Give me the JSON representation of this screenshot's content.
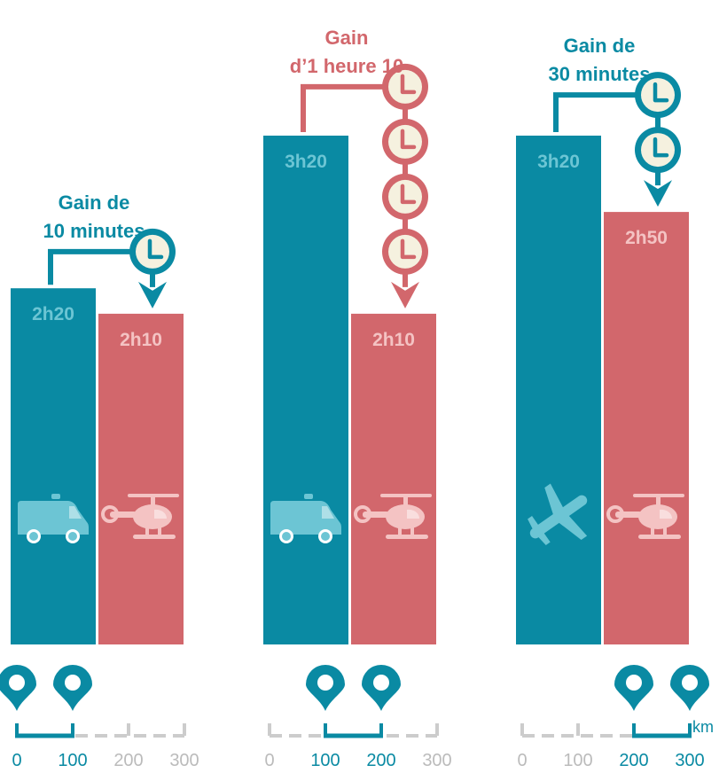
{
  "colors": {
    "blue": "#0a8aa3",
    "red": "#d2676c",
    "blue_label": "#6cc5d4",
    "red_label": "#f4c3c3",
    "clock_fill": "#f5f1df",
    "track_grey": "#cccccc",
    "tick_grey": "#bbbbbb"
  },
  "km_unit": "km",
  "chart_data": [
    {
      "type": "bar",
      "categories": [
        "ambulance",
        "helicopter"
      ],
      "values": [
        "2h20",
        "2h10"
      ],
      "values_minutes": [
        140,
        130
      ],
      "icons": [
        "ambulance-icon",
        "helicopter-icon"
      ],
      "gain_lines": [
        "Gain de",
        "10 minutes"
      ],
      "gain_color": "blue",
      "clock_count": 1,
      "km_ticks": [
        "0",
        "100",
        "200",
        "300"
      ],
      "route_km": [
        0,
        100
      ]
    },
    {
      "type": "bar",
      "categories": [
        "ambulance",
        "helicopter"
      ],
      "values": [
        "3h20",
        "2h10"
      ],
      "values_minutes": [
        200,
        130
      ],
      "icons": [
        "ambulance-icon",
        "helicopter-icon"
      ],
      "gain_lines": [
        "Gain",
        "d’1 heure 10"
      ],
      "gain_color": "red",
      "clock_count": 4,
      "km_ticks": [
        "0",
        "100",
        "200",
        "300"
      ],
      "route_km": [
        100,
        200
      ]
    },
    {
      "type": "bar",
      "categories": [
        "airplane",
        "helicopter"
      ],
      "values": [
        "3h20",
        "2h50"
      ],
      "values_minutes": [
        200,
        170
      ],
      "icons": [
        "airplane-icon",
        "helicopter-icon"
      ],
      "gain_lines": [
        "Gain de",
        "30 minutes"
      ],
      "gain_color": "blue",
      "clock_count": 2,
      "km_ticks": [
        "0",
        "100",
        "200",
        "300"
      ],
      "route_km": [
        200,
        300
      ]
    }
  ]
}
